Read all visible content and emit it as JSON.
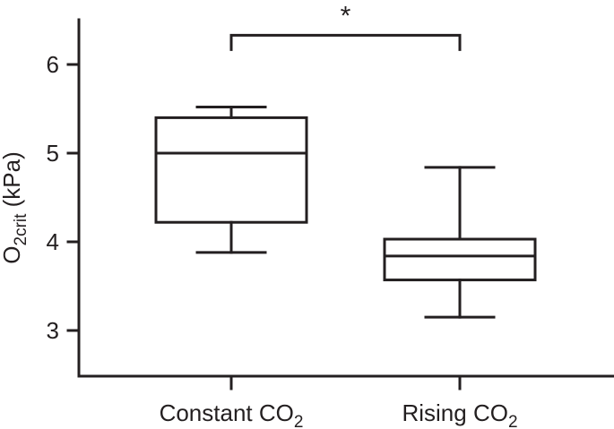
{
  "chart_data": {
    "type": "box",
    "title": "",
    "ylabel": {
      "base": "O",
      "subscript": "2crit",
      "unit": " (kPa)"
    },
    "ylim": [
      2.5,
      6.5
    ],
    "yticks": [
      3,
      4,
      5,
      6
    ],
    "grid": false,
    "legend": "none",
    "categories": [
      {
        "base": "Constant CO",
        "subscript": "2"
      },
      {
        "base": "Rising CO",
        "subscript": "2"
      }
    ],
    "boxes": [
      {
        "min": 3.88,
        "q1": 4.22,
        "median": 5.0,
        "q3": 5.4,
        "max": 5.52
      },
      {
        "min": 3.15,
        "q1": 3.57,
        "median": 3.84,
        "q3": 4.03,
        "max": 4.84
      }
    ],
    "significance": {
      "between": [
        0,
        1
      ],
      "label": "*",
      "level": 6.33
    }
  },
  "colors": {
    "ink": "#231f20",
    "background": "#ffffff"
  }
}
